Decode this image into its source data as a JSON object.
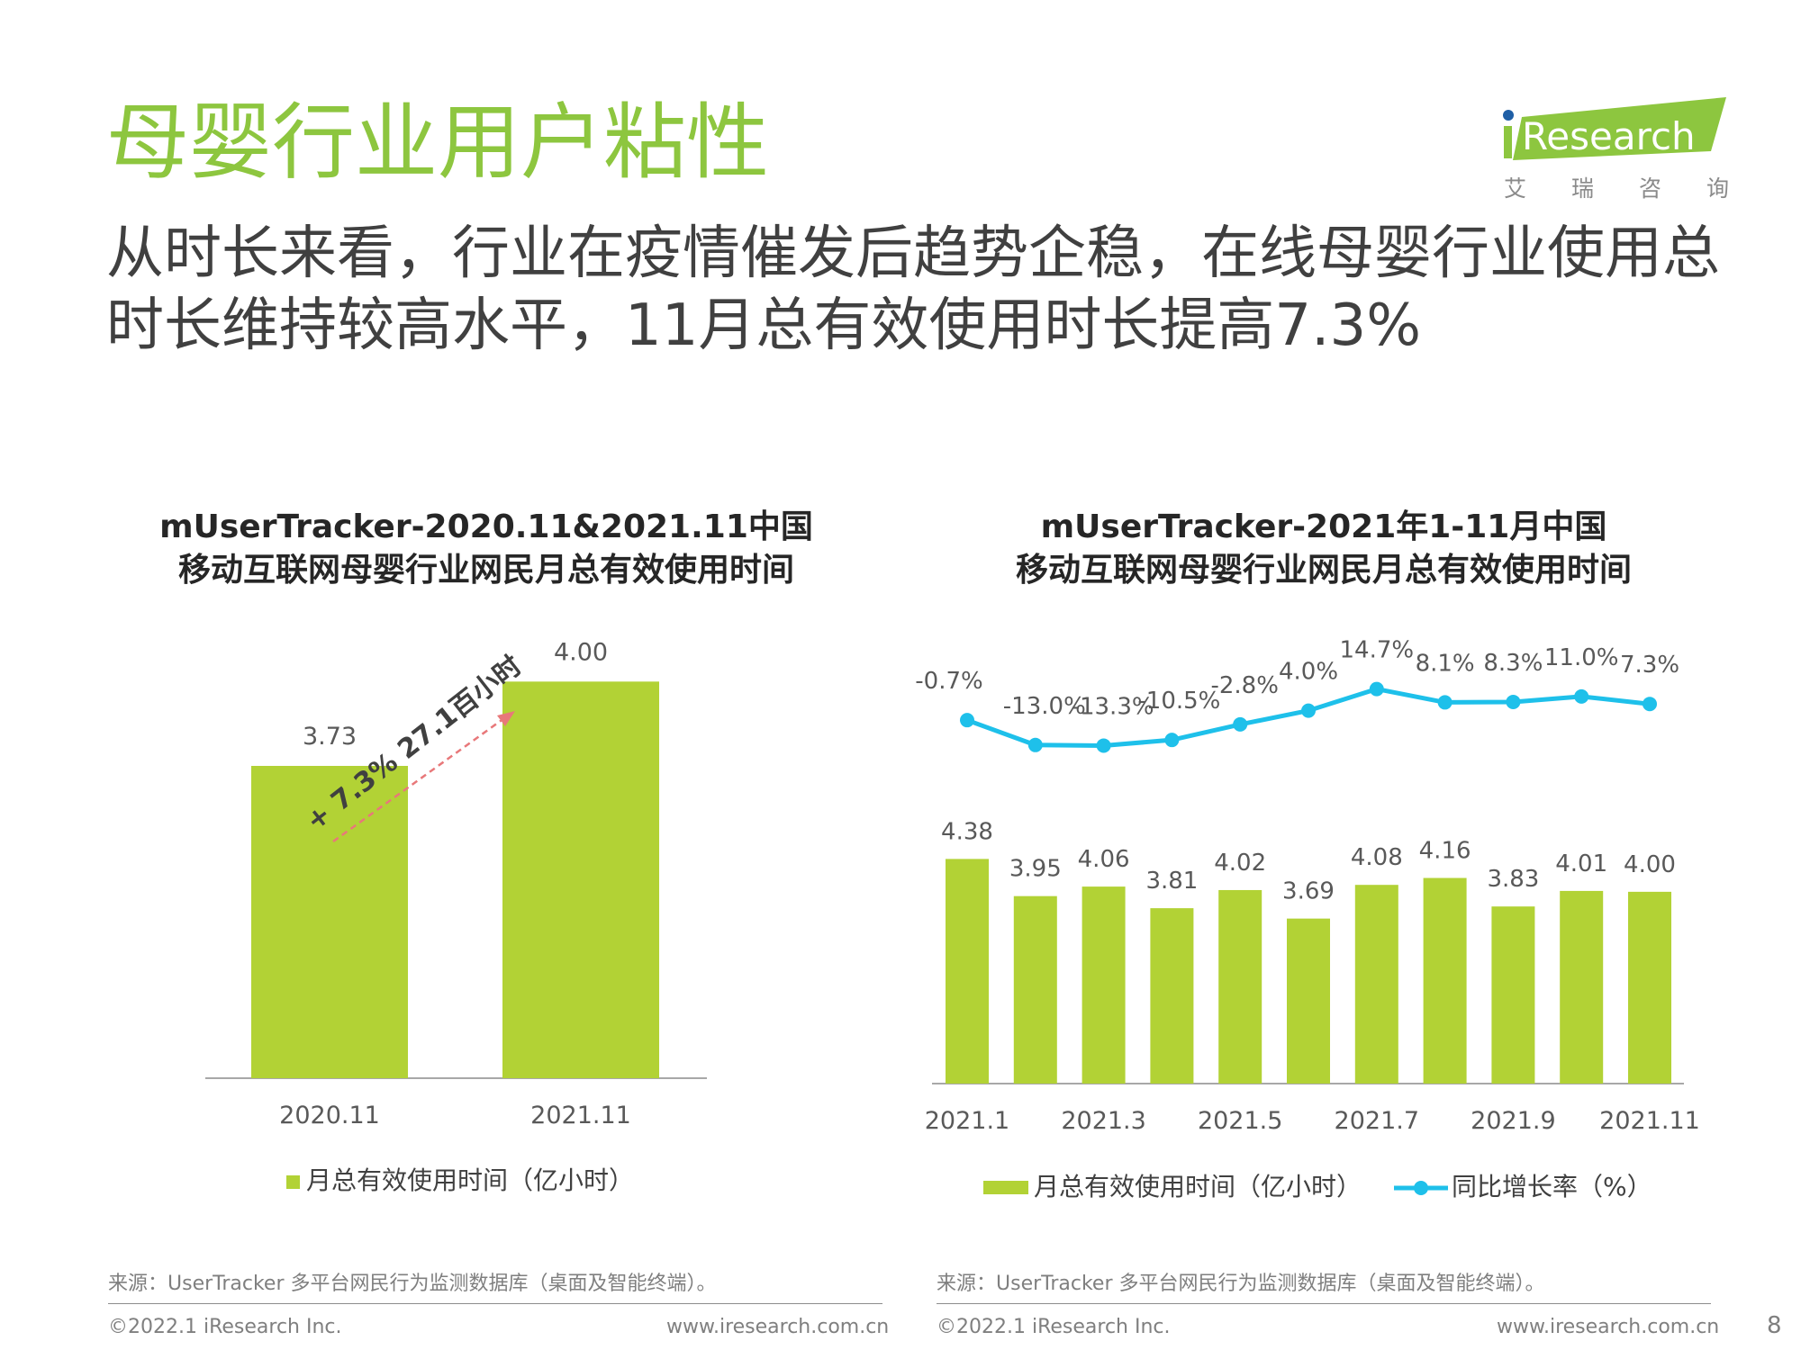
{
  "header": {
    "title": "母婴行业用户粘性",
    "subtitle": "从时长来看，行业在疫情催发后趋势企稳，在线母婴行业使用总时长维持较高水平，11月总有效使用时长提高7.3%",
    "logo_text": "Research",
    "logo_cn": [
      "艾",
      "瑞",
      "咨",
      "询"
    ],
    "brand_green": "#8dc63f"
  },
  "colors": {
    "bar": "#b2d235",
    "line": "#1ec0ea",
    "arrow": "#e8787a",
    "axis": "#8c8c8c"
  },
  "chart_data": [
    {
      "type": "bar",
      "title_line1": "mUserTracker-2020.11&2021.11中国",
      "title_line2": "移动互联网母婴行业网民月总有效使用时间",
      "categories": [
        "2020.11",
        "2021.11"
      ],
      "series": [
        {
          "name": "月总有效使用时间（亿小时）",
          "values": [
            3.73,
            4.0
          ]
        }
      ],
      "value_labels": [
        "3.73",
        "4.00"
      ],
      "annotation": "+ 7.3% 27.1百小时",
      "legend": "月总有效使用时间（亿小时）"
    },
    {
      "type": "bar",
      "title_line1": "mUserTracker-2021年1-11月中国",
      "title_line2": "移动互联网母婴行业网民月总有效使用时间",
      "categories": [
        "2021.1",
        "2021.2",
        "2021.3",
        "2021.4",
        "2021.5",
        "2021.6",
        "2021.7",
        "2021.8",
        "2021.9",
        "2021.10",
        "2021.11"
      ],
      "tick_labels": [
        "2021.1",
        "2021.3",
        "2021.5",
        "2021.7",
        "2021.9",
        "2021.11"
      ],
      "series": [
        {
          "name": "月总有效使用时间（亿小时）",
          "type": "bar",
          "values": [
            4.38,
            3.95,
            4.06,
            3.81,
            4.02,
            3.69,
            4.08,
            4.16,
            3.83,
            4.01,
            4.0
          ]
        },
        {
          "name": "同比增长率（%）",
          "type": "line",
          "values": [
            -0.7,
            -13.0,
            -13.3,
            -10.5,
            -2.8,
            4.0,
            14.7,
            8.1,
            8.3,
            11.0,
            7.3
          ]
        }
      ],
      "bar_labels": [
        "4.38",
        "3.95",
        "4.06",
        "3.81",
        "4.02",
        "3.69",
        "4.08",
        "4.16",
        "3.83",
        "4.01",
        "4.00"
      ],
      "line_labels": [
        "-0.7%",
        "-13.0%",
        "-13.3%",
        "-10.5%",
        "-2.8%",
        "4.0%",
        "14.7%",
        "8.1%",
        "8.3%",
        "11.0%",
        "7.3%"
      ],
      "legend": [
        "月总有效使用时间（亿小时）",
        "同比增长率（%）"
      ]
    }
  ],
  "footer": {
    "source": "来源：UserTracker 多平台网民行为监测数据库（桌面及智能终端）。",
    "copyright": "©2022.1 iResearch Inc.",
    "website": "www.iresearch.com.cn",
    "page_number": "8"
  }
}
